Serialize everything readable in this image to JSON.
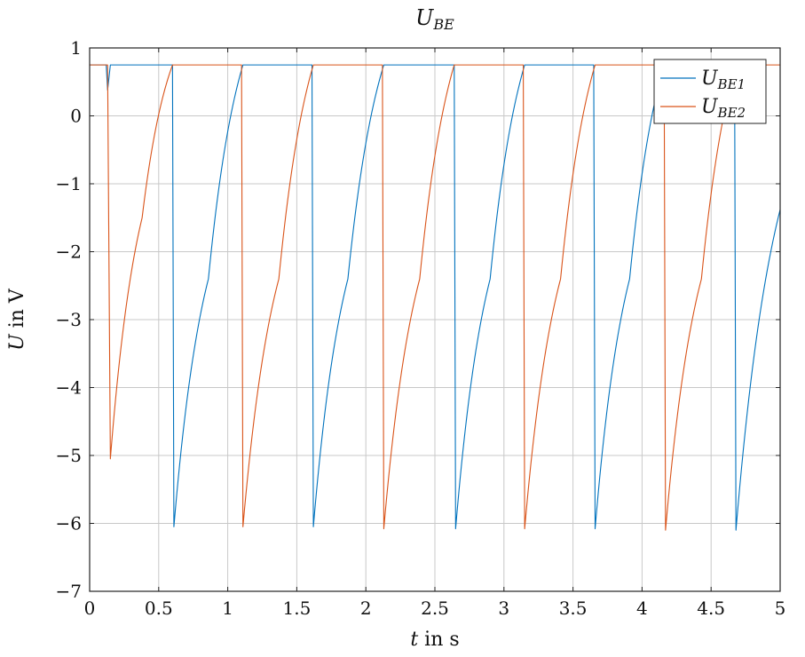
{
  "chart_data": {
    "type": "line",
    "title": {
      "main": "U",
      "sub": "BE"
    },
    "xlabel": {
      "var": "t",
      "rest": " in s"
    },
    "ylabel": {
      "var": "U",
      "rest": " in V"
    },
    "xlim": [
      0,
      5
    ],
    "ylim": [
      -7,
      1
    ],
    "xticks": [
      0,
      0.5,
      1,
      1.5,
      2,
      2.5,
      3,
      3.5,
      4,
      4.5,
      5
    ],
    "xtick_labels": [
      "0",
      "0.5",
      "1",
      "1.5",
      "2",
      "2.5",
      "3",
      "3.5",
      "4",
      "4.5",
      "5"
    ],
    "yticks": [
      -7,
      -6,
      -5,
      -4,
      -3,
      -2,
      -1,
      0,
      1
    ],
    "ytick_labels": [
      "−7",
      "−6",
      "−5",
      "−4",
      "−3",
      "−2",
      "−1",
      "0",
      "1"
    ],
    "grid": true,
    "legend_position": "top-right",
    "series": [
      {
        "name": "U",
        "name_sub": "BE1",
        "color": "#0072BD",
        "points": [
          [
            0,
            0.75
          ],
          [
            0.12,
            0.75
          ],
          [
            0.13,
            0.38
          ],
          [
            0.15,
            0.75
          ],
          [
            0.59,
            0.75
          ],
          [
            0.6,
            0.75
          ],
          [
            0.61,
            -6.05
          ],
          [
            0.86,
            -2.4
          ],
          [
            1.11,
            0.75
          ],
          [
            1.61,
            0.75
          ],
          [
            1.62,
            -6.05
          ],
          [
            1.87,
            -2.4
          ],
          [
            2.13,
            0.75
          ],
          [
            2.64,
            0.75
          ],
          [
            2.65,
            -6.08
          ],
          [
            2.9,
            -2.4
          ],
          [
            3.15,
            0.75
          ],
          [
            3.65,
            0.75
          ],
          [
            3.66,
            -6.08
          ],
          [
            3.91,
            -2.4
          ],
          [
            4.16,
            0.75
          ],
          [
            4.67,
            0.75
          ],
          [
            4.68,
            -6.1
          ],
          [
            5.0,
            -1.38
          ]
        ]
      },
      {
        "name": "U",
        "name_sub": "BE2",
        "color": "#D95319",
        "points": [
          [
            0,
            0.75
          ],
          [
            0.13,
            0.75
          ],
          [
            0.15,
            -5.05
          ],
          [
            0.38,
            -1.5
          ],
          [
            0.6,
            0.75
          ],
          [
            1.1,
            0.75
          ],
          [
            1.11,
            -6.05
          ],
          [
            1.37,
            -2.4
          ],
          [
            1.62,
            0.75
          ],
          [
            2.12,
            0.75
          ],
          [
            2.13,
            -6.08
          ],
          [
            2.39,
            -2.4
          ],
          [
            2.64,
            0.75
          ],
          [
            3.14,
            0.75
          ],
          [
            3.15,
            -6.08
          ],
          [
            3.41,
            -2.4
          ],
          [
            3.66,
            0.75
          ],
          [
            4.16,
            0.75
          ],
          [
            4.17,
            -6.1
          ],
          [
            4.43,
            -2.4
          ],
          [
            4.68,
            0.75
          ],
          [
            5.0,
            0.75
          ]
        ]
      }
    ]
  }
}
